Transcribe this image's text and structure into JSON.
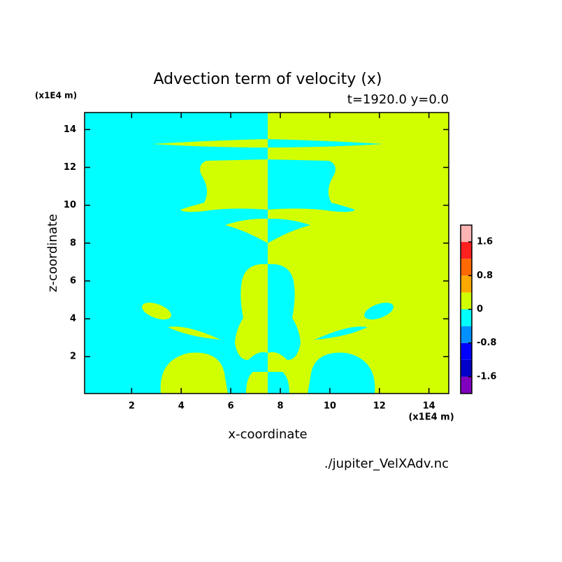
{
  "chart_data": {
    "type": "filled-contour",
    "title": "Advection term of velocity (x)",
    "subtitle": "t=1920.0 y=0.0",
    "xlabel": "x-coordinate",
    "ylabel": "z-coordinate",
    "x_unit": "(x1E4 m)",
    "y_unit": "(x1E4 m)",
    "footer": "./jupiter_VelXAdv.nc",
    "xlim": [
      0.1,
      14.8
    ],
    "xticks": [
      2,
      4,
      6,
      8,
      10,
      12,
      14
    ],
    "ylim": [
      0.05,
      14.9
    ],
    "yticks": [
      2,
      4,
      6,
      8,
      10,
      12,
      14
    ],
    "colorbar": {
      "lim": [
        -2,
        2
      ],
      "ticks": [
        -1.6,
        -0.8,
        0,
        0.8,
        1.6
      ],
      "colors": [
        "#8000c0",
        "#0000c8",
        "#0000ff",
        "#0090ff",
        "#00ffff",
        "#d2ff00",
        "#ffa800",
        "#ff6a00",
        "#ff2020",
        "#ffb4b4"
      ]
    }
  }
}
